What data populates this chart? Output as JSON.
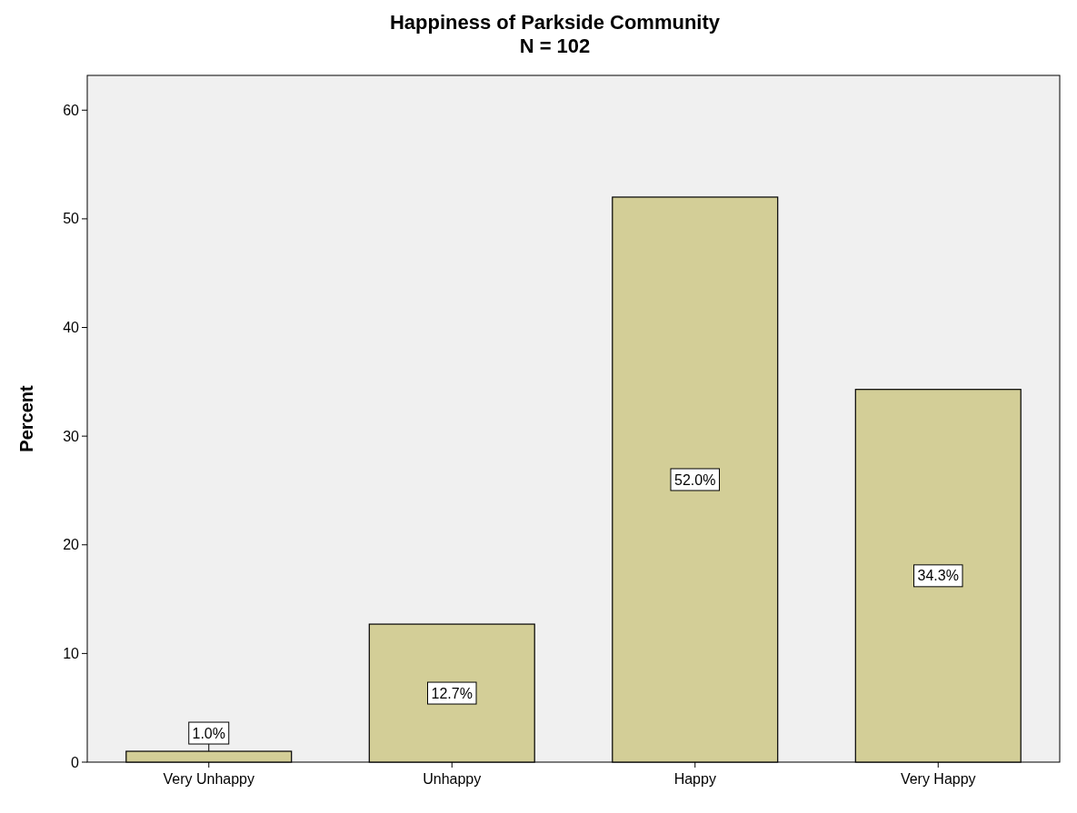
{
  "chart_data": {
    "type": "bar",
    "title": "Happiness of Parkside Community",
    "subtitle": "N = 102",
    "ylabel": "Percent",
    "categories": [
      "Very Unhappy",
      "Unhappy",
      "Happy",
      "Very Happy"
    ],
    "values": [
      1.0,
      12.7,
      52.0,
      34.3
    ],
    "value_labels": [
      "1.0%",
      "12.7%",
      "52.0%",
      "34.3%"
    ],
    "color": "#d3ce97",
    "ylim": [
      0,
      63.2
    ],
    "yticks": [
      0,
      10,
      20,
      30,
      40,
      50,
      60
    ],
    "grid": false
  }
}
